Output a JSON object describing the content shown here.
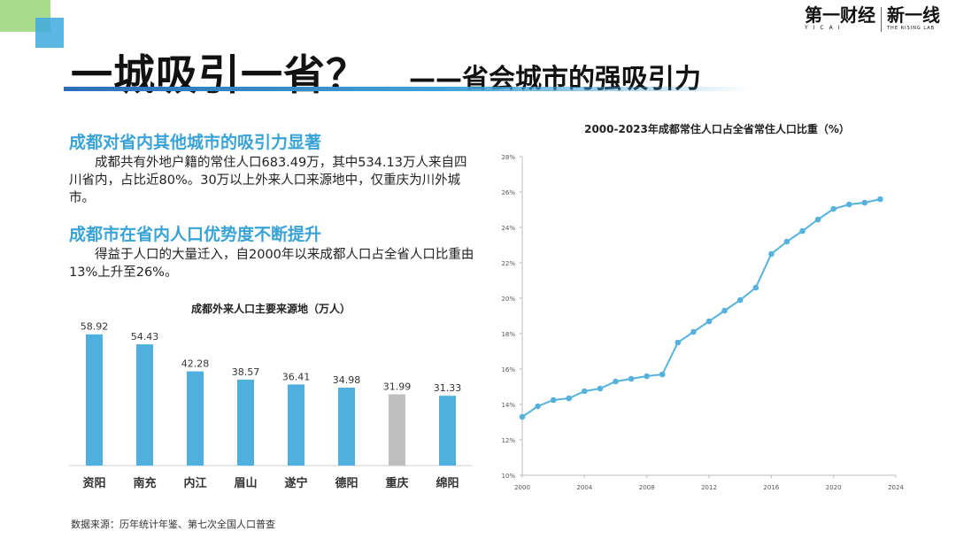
{
  "header": {
    "title": "一城吸引一省？",
    "subtitle": "——省会城市的强吸引力",
    "logo_main": "第一财经",
    "logo_sub": "YICAI",
    "logo2_main": "新一线",
    "logo2_sub": "THE RISING LAB"
  },
  "sections": [
    {
      "heading": "成都对省内其他城市的吸引力显著",
      "text": "成都共有外地户籍的常住人口683.49万，其中534.13万人来自四川省内，占比近80%。30万以上外来人口来源地中，仅重庆为川外城市。"
    },
    {
      "heading": "成都市在省内人口优势度不断提升",
      "text": "得益于人口的大量迁入，自2000年以来成都人口占全省人口比重由13%上升至26%。"
    }
  ],
  "source": "数据来源：历年统计年鉴、第七次全国人口普查",
  "colors": {
    "accent": "#3aa3d6",
    "bar": "#4fb0df",
    "bar_alt": "#bfbfbf",
    "line": "#56b2dd"
  },
  "chart_data": [
    {
      "type": "bar",
      "title": "成都外来人口主要来源地（万人）",
      "categories": [
        "资阳",
        "南充",
        "内江",
        "眉山",
        "遂宁",
        "德阳",
        "重庆",
        "绵阳"
      ],
      "values": [
        58.92,
        54.43,
        42.28,
        38.57,
        36.41,
        34.98,
        31.99,
        31.33
      ],
      "highlight": "重庆",
      "ylim": [
        0,
        62
      ]
    },
    {
      "type": "line",
      "title": "2000-2023年成都常住人口占全省常住人口比重（%）",
      "x": [
        2000,
        2001,
        2002,
        2003,
        2004,
        2005,
        2006,
        2007,
        2008,
        2009,
        2010,
        2011,
        2012,
        2013,
        2014,
        2015,
        2016,
        2017,
        2018,
        2019,
        2020,
        2021,
        2022,
        2023
      ],
      "y": [
        13.3,
        13.9,
        14.25,
        14.35,
        14.75,
        14.9,
        15.3,
        15.45,
        15.6,
        15.7,
        17.5,
        18.1,
        18.7,
        19.3,
        19.9,
        20.6,
        22.5,
        23.2,
        23.8,
        24.45,
        25.05,
        25.3,
        25.4,
        25.6
      ],
      "xticks": [
        "2000",
        "2004",
        "2008",
        "2012",
        "2016",
        "2020",
        "2024"
      ],
      "yticks": [
        "10%",
        "12%",
        "14%",
        "16%",
        "18%",
        "20%",
        "22%",
        "24%",
        "26%",
        "28%"
      ],
      "xlim": [
        2000,
        2024
      ],
      "ylim": [
        10,
        28
      ],
      "grid": false
    }
  ]
}
